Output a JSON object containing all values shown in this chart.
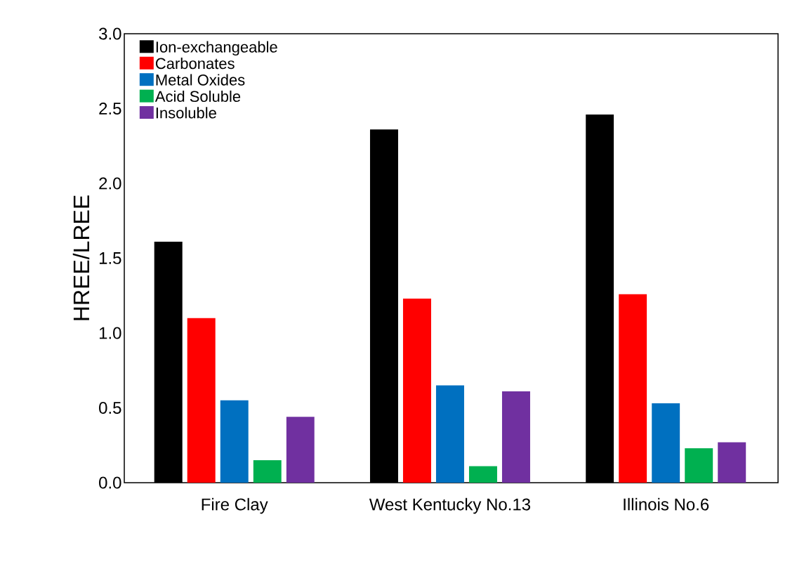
{
  "chart_data": {
    "type": "bar",
    "ylabel": "HREE/LREE",
    "categories": [
      "Fire Clay",
      "West Kentucky No.13",
      "Illinois No.6"
    ],
    "series": [
      {
        "name": "Ion-exchangeable",
        "color": "#000000",
        "values": [
          1.61,
          2.36,
          2.46
        ]
      },
      {
        "name": "Carbonates",
        "color": "#ff0000",
        "values": [
          1.1,
          1.23,
          1.26
        ]
      },
      {
        "name": "Metal Oxides",
        "color": "#0070c0",
        "values": [
          0.55,
          0.65,
          0.53
        ]
      },
      {
        "name": "Acid Soluble",
        "color": "#00b050",
        "values": [
          0.15,
          0.11,
          0.23
        ]
      },
      {
        "name": "Insoluble",
        "color": "#7030a0",
        "values": [
          0.44,
          0.61,
          0.27
        ]
      }
    ],
    "ylim": [
      0,
      3.0
    ],
    "yticks": [
      {
        "value": 0,
        "label": "0.0"
      },
      {
        "value": 0.5,
        "label": "0.5"
      },
      {
        "value": 1.0,
        "label": "1.0"
      },
      {
        "value": 1.5,
        "label": "1.5"
      },
      {
        "value": 2.0,
        "label": "2.0"
      },
      {
        "value": 2.5,
        "label": "2.5"
      },
      {
        "value": 3.0,
        "label": "3.0"
      }
    ],
    "legend": "top left"
  }
}
